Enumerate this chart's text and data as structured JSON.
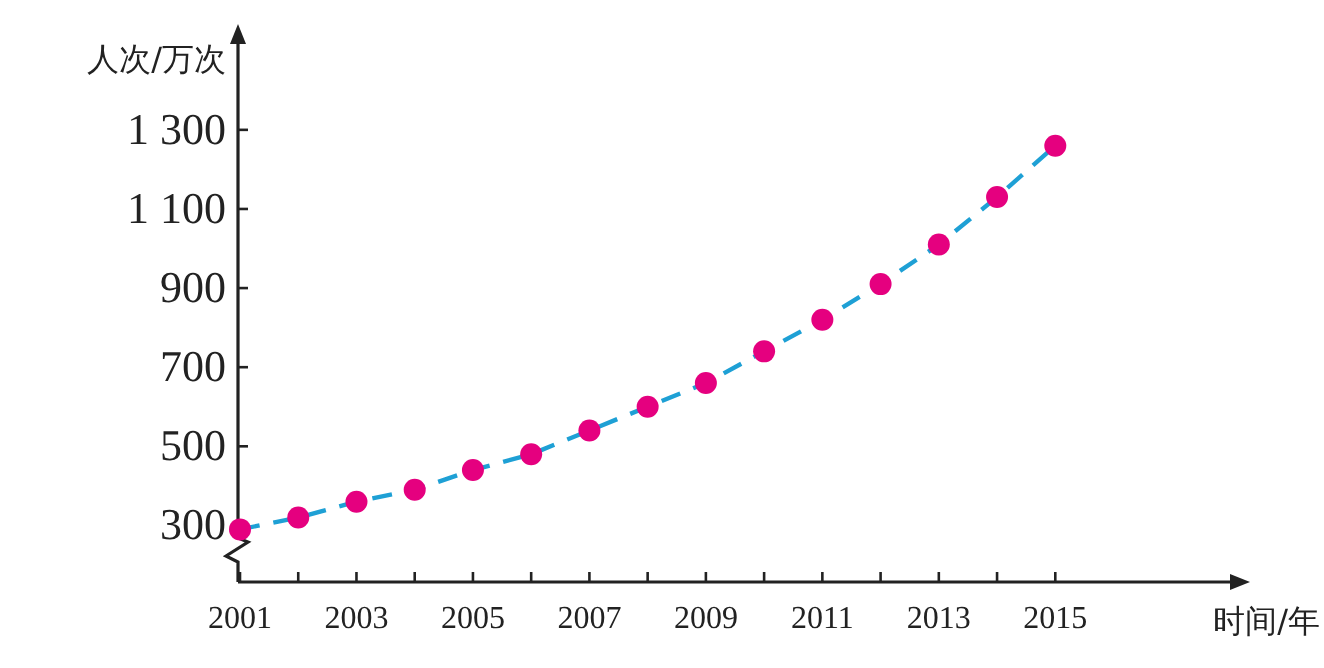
{
  "chart_data": {
    "type": "line",
    "xlabel": "时间/年",
    "ylabel": "人次/万次",
    "x": [
      2001,
      2002,
      2003,
      2004,
      2005,
      2006,
      2007,
      2008,
      2009,
      2010,
      2011,
      2012,
      2013,
      2014,
      2015
    ],
    "series": [
      {
        "color": "#1ea0d5",
        "marker": "none",
        "values": [
          290,
          320,
          360,
          390,
          440,
          480,
          540,
          600,
          660,
          740,
          820,
          910,
          1010,
          1130,
          1260
        ]
      },
      {
        "type": "scatter",
        "color": "#e5007f",
        "values": [
          290,
          320,
          360,
          390,
          440,
          480,
          540,
          600,
          660,
          740,
          820,
          910,
          1010,
          1130,
          1260
        ]
      }
    ],
    "marker": "circle",
    "line_style": "dashed",
    "grid": false,
    "xlim": [
      2001,
      2018
    ],
    "ylim": [
      157,
      1517
    ],
    "xticks": [
      2001,
      {
        "value": 2002,
        "label": null
      },
      2003,
      {
        "value": 2004,
        "label": null
      },
      2005,
      {
        "value": 2006,
        "label": null
      },
      2007,
      {
        "value": 2008,
        "label": null
      },
      2009,
      {
        "value": 2010,
        "label": null
      },
      2011,
      {
        "value": 2012,
        "label": null
      },
      2013,
      {
        "value": 2014,
        "label": null
      },
      2015
    ],
    "yticks": [
      {
        "value": 300,
        "label": "300"
      },
      {
        "value": 500,
        "label": "500"
      },
      {
        "value": 700,
        "label": "700"
      },
      {
        "value": 900,
        "label": "900"
      },
      {
        "value": 1100,
        "label": "1 100"
      },
      {
        "value": 1300,
        "label": "1 300"
      }
    ]
  }
}
